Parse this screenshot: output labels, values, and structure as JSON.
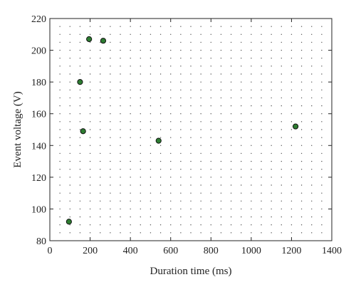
{
  "chart_data": {
    "type": "scatter",
    "title": "",
    "xlabel": "Duration time (ms)",
    "ylabel": "Event voltage (V)",
    "xlim": [
      0,
      1400
    ],
    "ylim": [
      80,
      220
    ],
    "xticks": [
      0,
      200,
      400,
      600,
      800,
      1000,
      1200,
      1400
    ],
    "yticks": [
      80,
      100,
      120,
      140,
      160,
      180,
      200,
      220
    ],
    "grid": "dotted",
    "marker_color": "#2e7d32",
    "series": [
      {
        "points": [
          {
            "x": 95,
            "y": 92
          },
          {
            "x": 150,
            "y": 180
          },
          {
            "x": 165,
            "y": 149
          },
          {
            "x": 195,
            "y": 207
          },
          {
            "x": 265,
            "y": 206
          },
          {
            "x": 540,
            "y": 143
          },
          {
            "x": 1220,
            "y": 152
          }
        ]
      }
    ]
  }
}
